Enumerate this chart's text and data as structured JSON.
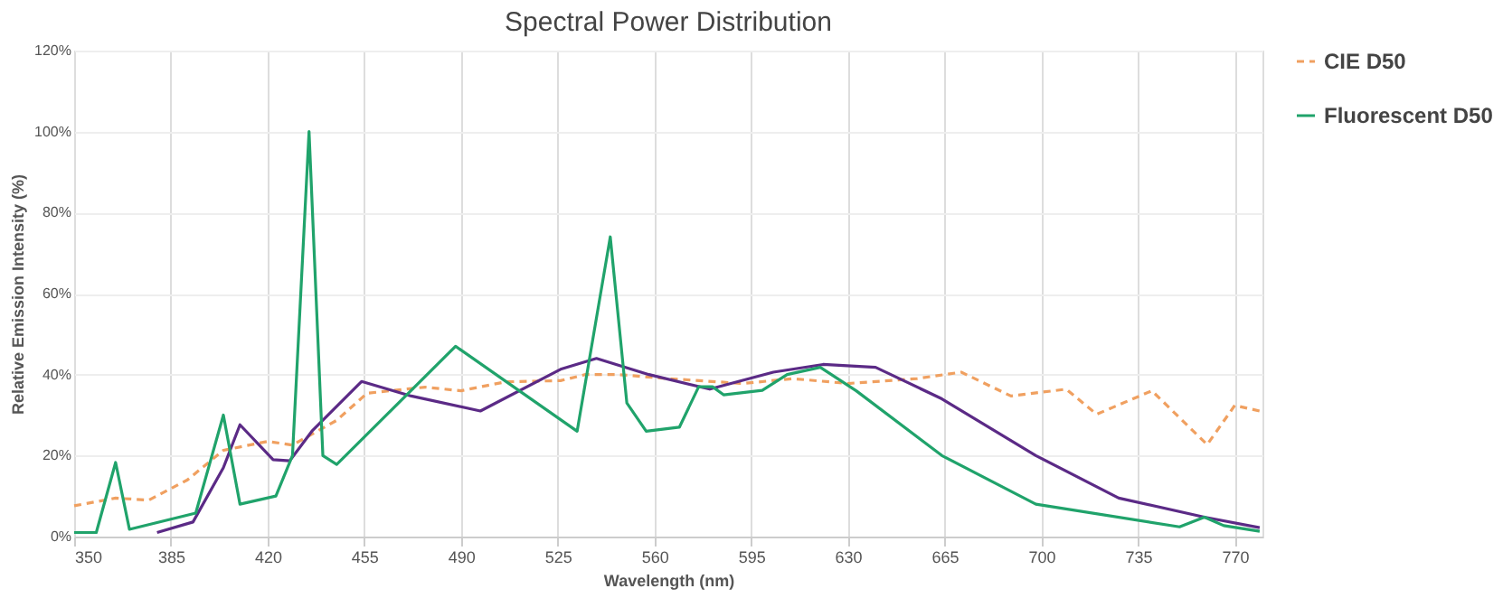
{
  "chart_data": {
    "type": "line",
    "title": "Spectral Power Distribution",
    "xlabel": "Wavelength (nm)",
    "ylabel": "Relative Emission Intensity (%)",
    "xlim": [
      350,
      780
    ],
    "xticks": [
      350,
      385,
      420,
      455,
      490,
      525,
      560,
      595,
      630,
      665,
      700,
      735,
      770
    ],
    "ylim": [
      0,
      120
    ],
    "yticks": [
      {
        "value": 0,
        "label": "0%"
      },
      {
        "value": 20,
        "label": "20%"
      },
      {
        "value": 40,
        "label": "40%"
      },
      {
        "value": 60,
        "label": "60%"
      },
      {
        "value": 80,
        "label": "80%"
      },
      {
        "value": 100,
        "label": "100%"
      },
      {
        "value": 120,
        "label": "120%"
      }
    ],
    "grid": true,
    "legend": "right",
    "marker": "none",
    "series": [
      {
        "name": "CIE D50",
        "color": "#f0a060",
        "line_style": "dashed",
        "x": [
          350,
          365,
          377,
          391,
          404,
          420,
          429,
          445,
          456,
          477,
          490,
          506,
          526,
          535,
          547,
          565,
          592,
          610,
          630,
          655,
          671,
          689,
          709,
          720,
          740,
          760,
          770,
          779
        ],
        "values": [
          7.6,
          9.5,
          9,
          14,
          21.3,
          23.5,
          22.6,
          28.7,
          35.4,
          36.9,
          36,
          38.2,
          38.5,
          40,
          40,
          39,
          37.8,
          39,
          37.8,
          39,
          40.6,
          34.7,
          36.4,
          30.2,
          36,
          22.7,
          32.4,
          31
        ]
      },
      {
        "color": "#5b2a86",
        "line_style": "solid",
        "x": [
          380,
          393,
          404,
          410,
          422,
          428,
          436,
          454,
          472,
          497,
          526,
          539,
          558,
          580,
          603,
          621,
          640,
          664,
          698,
          728,
          759,
          779
        ],
        "values": [
          1,
          3.6,
          17,
          27.6,
          19,
          18.7,
          26,
          38.3,
          34.7,
          31,
          41.3,
          44,
          40,
          36.4,
          40.6,
          42.5,
          41.8,
          34,
          20,
          9.5,
          4.8,
          2.2
        ]
      },
      {
        "name": "Fluorescent D50",
        "color": "#20a36b",
        "line_style": "solid",
        "x": [
          350,
          358,
          365,
          370,
          394,
          404,
          410,
          423,
          429,
          435,
          440,
          445,
          488,
          532,
          544,
          550,
          557,
          569,
          576,
          581,
          585,
          599,
          608,
          620,
          633,
          664,
          698,
          750,
          759,
          766,
          779
        ],
        "values": [
          1,
          1,
          18.3,
          1.8,
          5.8,
          30,
          8,
          10,
          20,
          100,
          20,
          17.8,
          47,
          26,
          74,
          33,
          26,
          27,
          37,
          37,
          35,
          36.1,
          40,
          41.8,
          36,
          20,
          8,
          2.4,
          4.8,
          2.7,
          1.3
        ]
      }
    ]
  }
}
